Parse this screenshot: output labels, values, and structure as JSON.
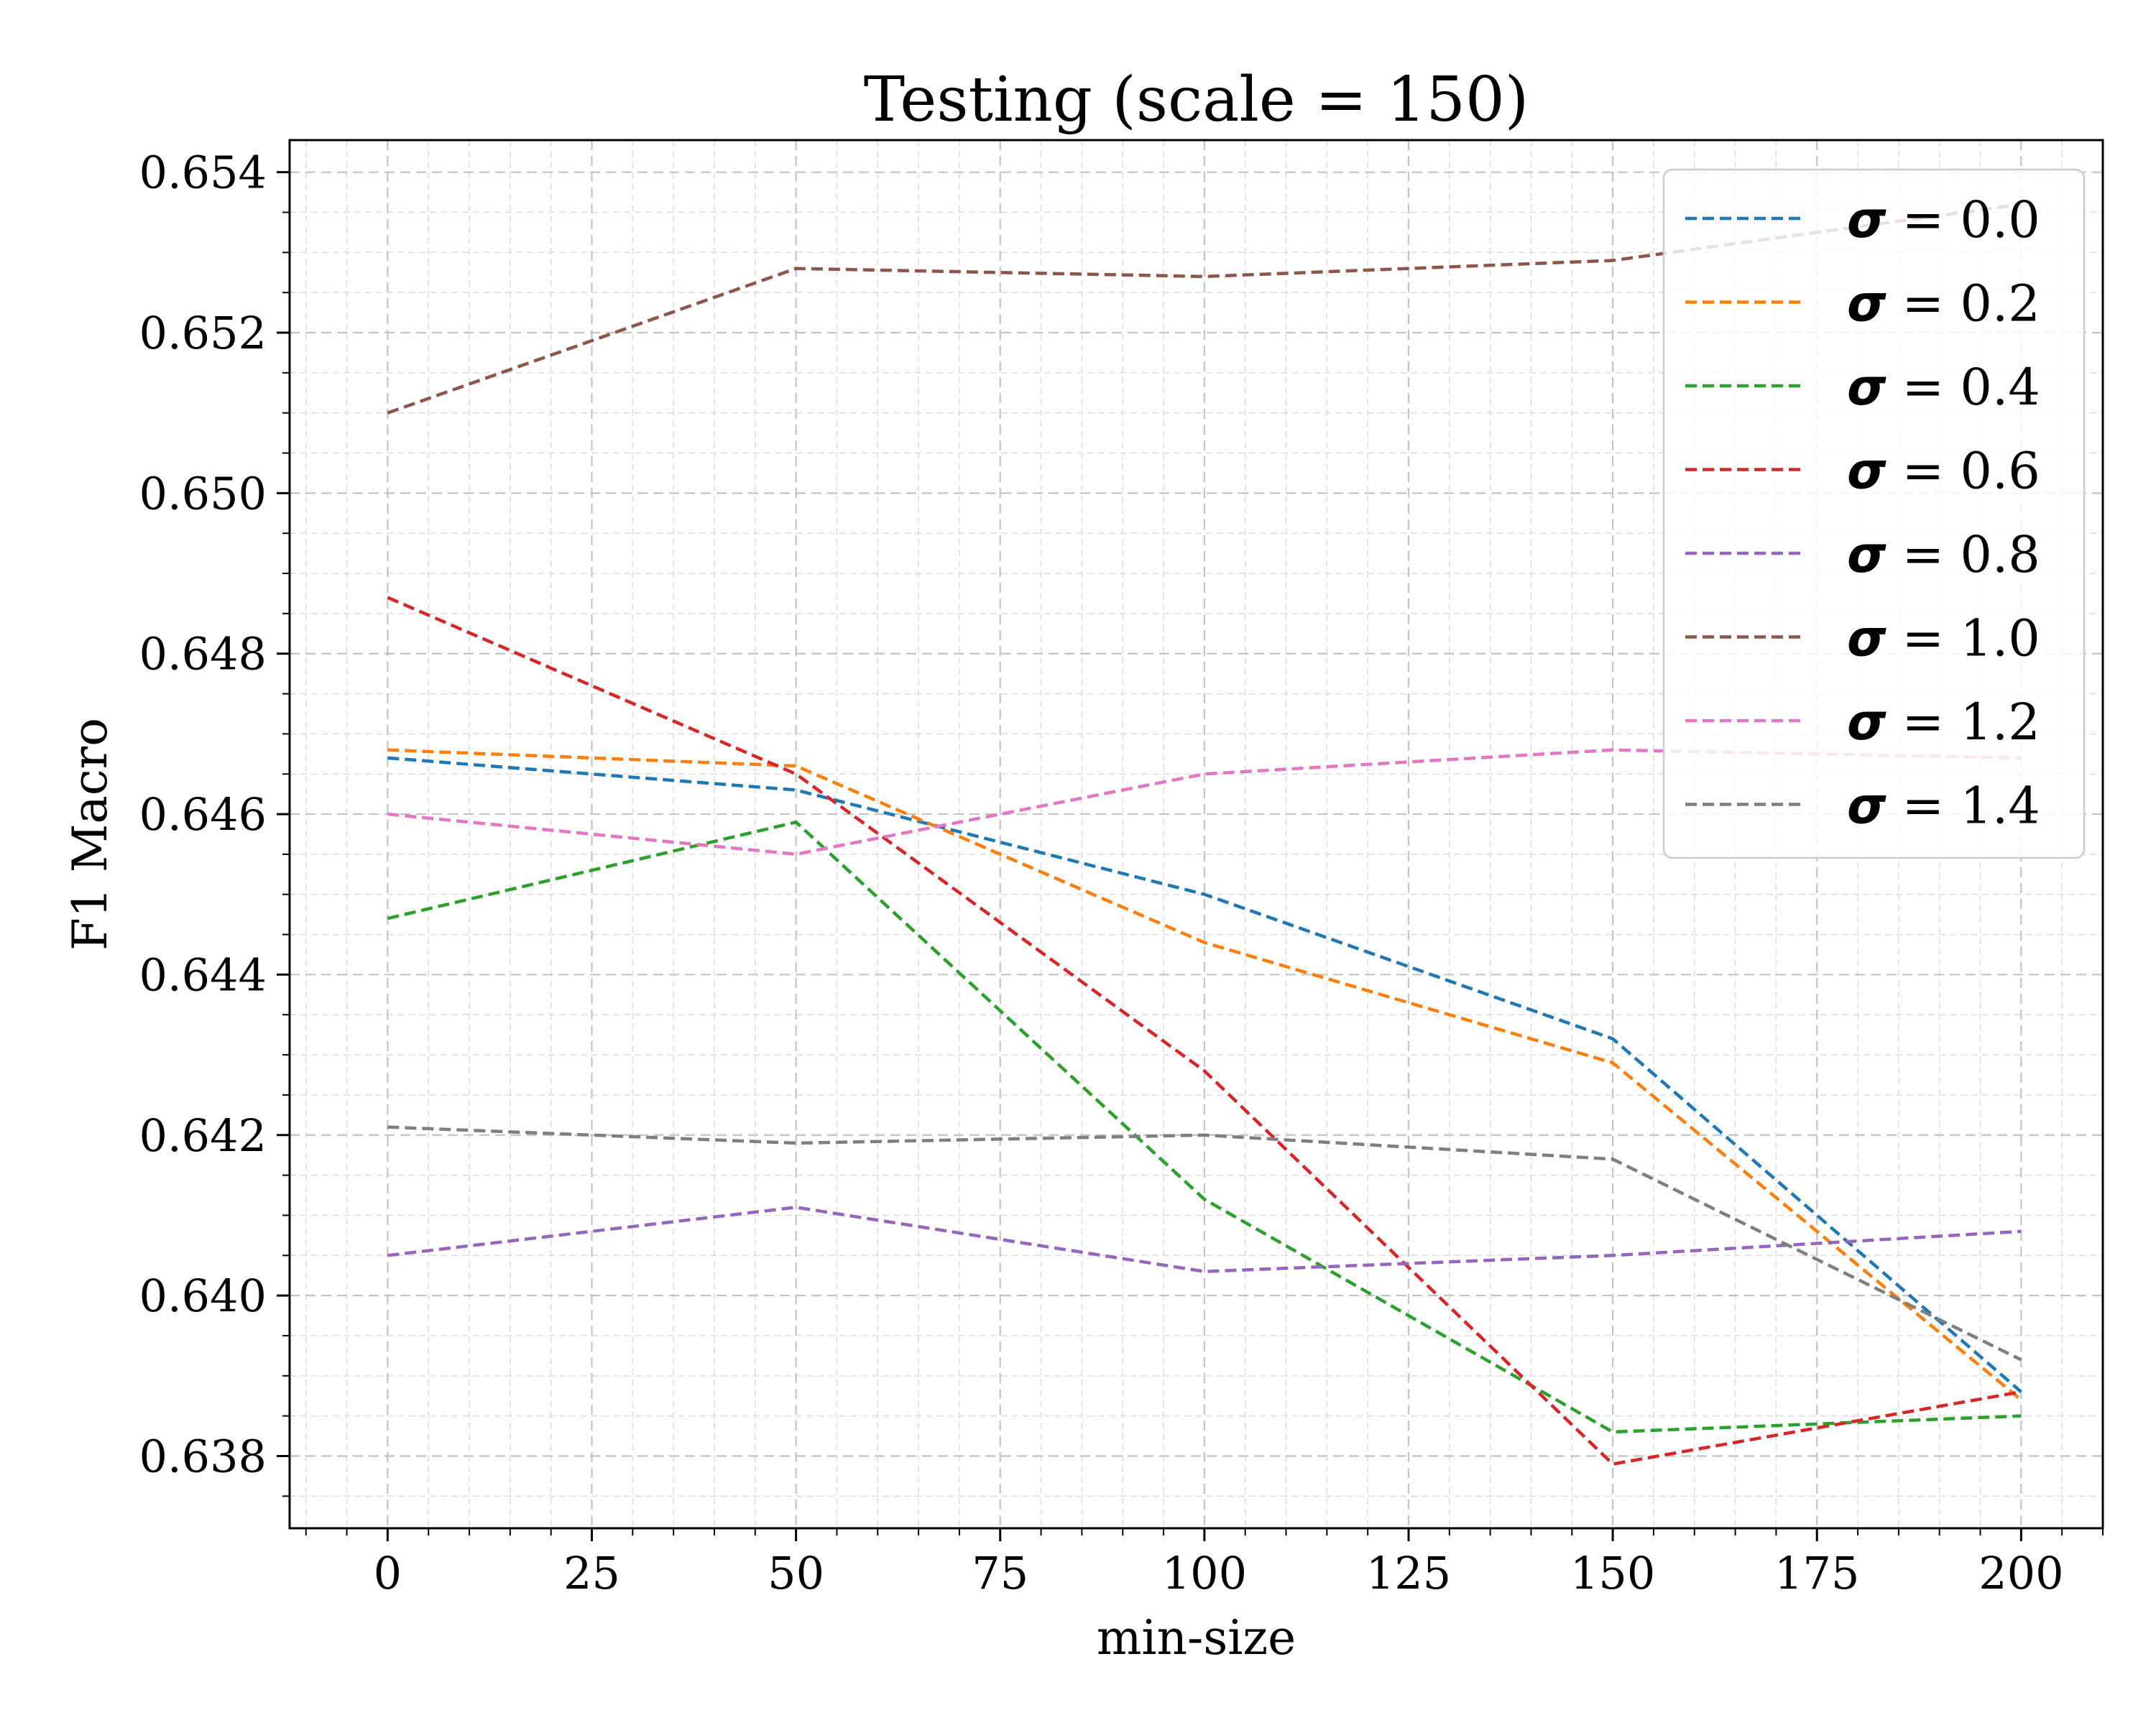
{
  "chart_data": {
    "type": "line",
    "title": "Testing (scale = 150)",
    "xlabel": "min-size",
    "ylabel": "F1 Macro",
    "xlim": [
      -12,
      210
    ],
    "ylim": [
      0.6371,
      0.6544
    ],
    "xticks": [
      0,
      25,
      50,
      75,
      100,
      125,
      150,
      175,
      200
    ],
    "xtick_labels": [
      "0",
      "25",
      "50",
      "75",
      "100",
      "125",
      "150",
      "175",
      "200"
    ],
    "yticks": [
      0.638,
      0.64,
      0.642,
      0.644,
      0.646,
      0.648,
      0.65,
      0.652,
      0.654
    ],
    "ytick_labels": [
      "0.638",
      "0.640",
      "0.642",
      "0.644",
      "0.646",
      "0.648",
      "0.650",
      "0.652",
      "0.654"
    ],
    "grid": true,
    "line_style": "dashed",
    "legend_position": "top-right",
    "x": [
      0,
      50,
      100,
      150,
      200
    ],
    "series": [
      {
        "name": "σ = 0.0",
        "symbol": "σ",
        "value_text": "= 0.0",
        "color": "#1f77b4",
        "values": [
          0.6467,
          0.6463,
          0.645,
          0.6432,
          0.6388
        ]
      },
      {
        "name": "σ = 0.2",
        "symbol": "σ",
        "value_text": "= 0.2",
        "color": "#ff7f0e",
        "values": [
          0.6468,
          0.6466,
          0.6444,
          0.6429,
          0.6387
        ]
      },
      {
        "name": "σ = 0.4",
        "symbol": "σ",
        "value_text": "= 0.4",
        "color": "#2ca02c",
        "values": [
          0.6447,
          0.6459,
          0.6412,
          0.6383,
          0.6385
        ]
      },
      {
        "name": "σ = 0.6",
        "symbol": "σ",
        "value_text": "= 0.6",
        "color": "#d62728",
        "values": [
          0.6487,
          0.6465,
          0.6428,
          0.6379,
          0.6388
        ]
      },
      {
        "name": "σ = 0.8",
        "symbol": "σ",
        "value_text": "= 0.8",
        "color": "#9467bd",
        "values": [
          0.6405,
          0.6411,
          0.6403,
          0.6405,
          0.6408
        ]
      },
      {
        "name": "σ = 1.0",
        "symbol": "σ",
        "value_text": "= 1.0",
        "color": "#8c564b",
        "values": [
          0.651,
          0.6528,
          0.6527,
          0.6529,
          0.6536
        ]
      },
      {
        "name": "σ = 1.2",
        "symbol": "σ",
        "value_text": "= 1.2",
        "color": "#e377c2",
        "values": [
          0.646,
          0.6455,
          0.6465,
          0.6468,
          0.6467
        ]
      },
      {
        "name": "σ = 1.4",
        "symbol": "σ",
        "value_text": "= 1.4",
        "color": "#7f7f7f",
        "values": [
          0.6421,
          0.6419,
          0.642,
          0.6417,
          0.6392
        ]
      }
    ]
  }
}
